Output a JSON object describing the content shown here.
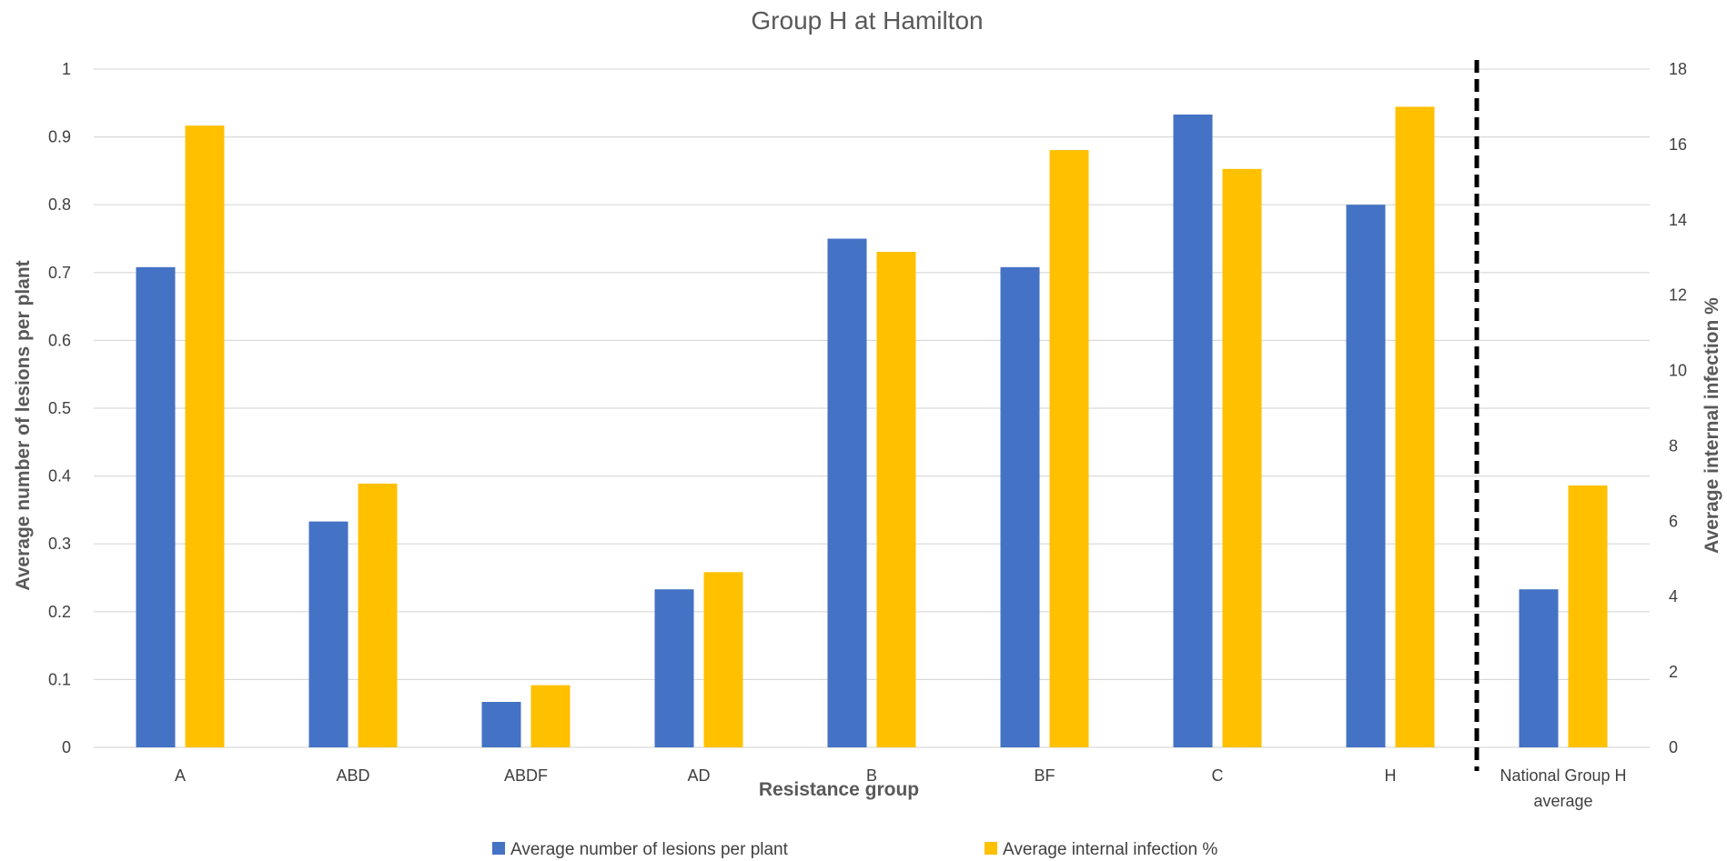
{
  "chart_data": {
    "type": "bar",
    "title": "Group H at Hamilton",
    "xlabel": "Resistance group",
    "ylabel": "Average number of lesions per plant",
    "y2label": "Average internal infection %",
    "categories": [
      "A",
      "ABD",
      "ABDF",
      "AD",
      "B",
      "BF",
      "C",
      "H",
      "National Group H average"
    ],
    "category_lines": [
      [
        "A"
      ],
      [
        "ABD"
      ],
      [
        "ABDF"
      ],
      [
        "AD"
      ],
      [
        "B"
      ],
      [
        "BF"
      ],
      [
        "C"
      ],
      [
        "H"
      ],
      [
        "National Group H",
        "average"
      ]
    ],
    "series": [
      {
        "name": "Average number of lesions per plant",
        "axis": "left",
        "color": "#4472c4",
        "values": [
          0.708,
          0.333,
          0.067,
          0.233,
          0.75,
          0.708,
          0.933,
          0.8,
          0.233
        ]
      },
      {
        "name": "Average internal infection %",
        "axis": "right",
        "color": "#ffc000",
        "values": [
          16.5,
          7.0,
          1.65,
          4.65,
          13.15,
          15.85,
          15.35,
          17.0,
          6.95
        ]
      }
    ],
    "ylim": [
      0,
      1
    ],
    "yticks": [
      "0",
      "0.1",
      "0.2",
      "0.3",
      "0.4",
      "0.5",
      "0.6",
      "0.7",
      "0.8",
      "0.9",
      "1"
    ],
    "y2lim": [
      0,
      18
    ],
    "y2ticks": [
      "0",
      "2",
      "4",
      "6",
      "8",
      "10",
      "12",
      "14",
      "16",
      "18"
    ],
    "separator_after_category": "H",
    "grid": true,
    "legend_position": "bottom"
  }
}
